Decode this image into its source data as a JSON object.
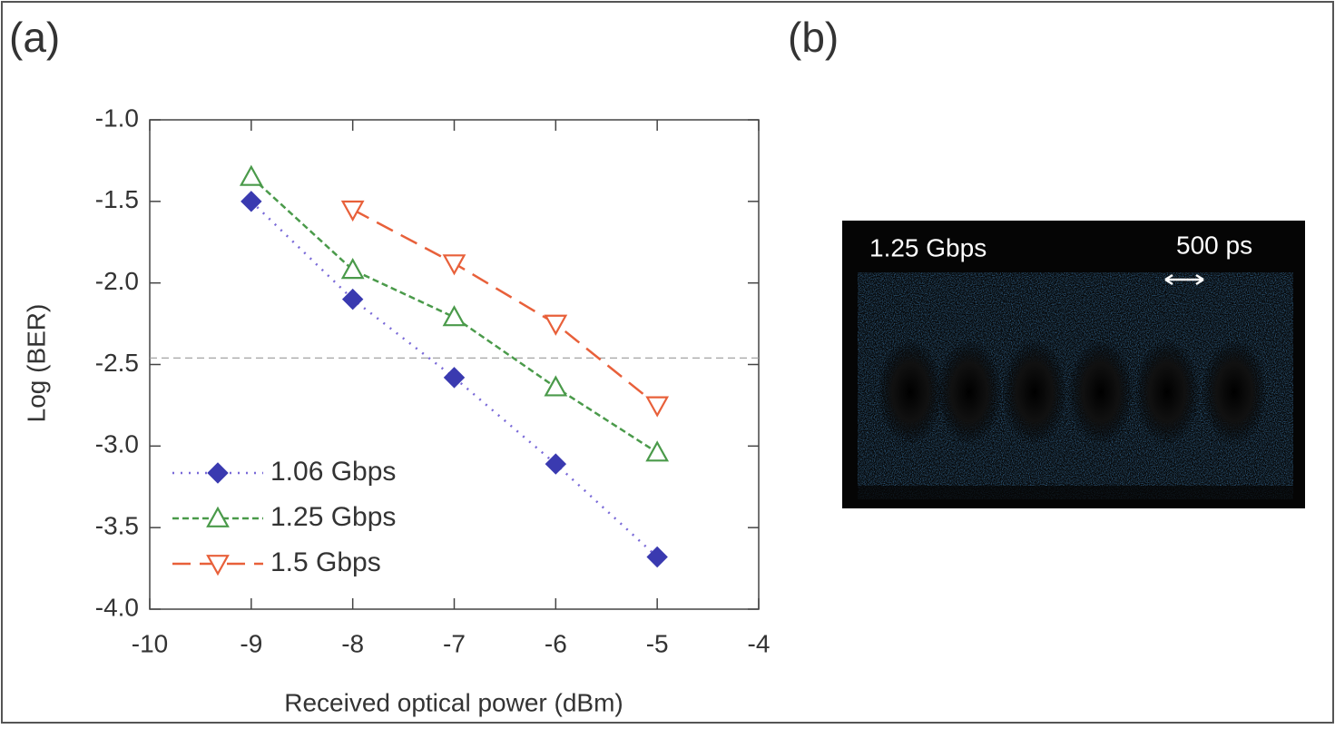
{
  "panels": {
    "a": "(a)",
    "b": "(b)"
  },
  "chart_data": {
    "type": "line",
    "x_label": "Received optical power (dBm)",
    "y_label": "Log (BER)",
    "x": [
      -9,
      -8,
      -7,
      -6,
      -5
    ],
    "series": [
      {
        "name": "1.06 Gbps",
        "color": "#3a3ab0",
        "line_color": "#7a6ad8",
        "marker": "diamond",
        "dash": "dotted",
        "values": [
          -1.5,
          -2.1,
          -2.58,
          -3.11,
          -3.68
        ]
      },
      {
        "name": "1.25 Gbps",
        "color": "#4a9a4a",
        "line_color": "#4a9a4a",
        "marker": "triangle-up",
        "dash": "dashed",
        "values": [
          -1.35,
          -1.92,
          -2.21,
          -2.64,
          -3.04
        ]
      },
      {
        "name": "1.5 Gbps",
        "color": "#e8603a",
        "line_color": "#e8603a",
        "marker": "triangle-down",
        "dash": "longdash",
        "values": [
          null,
          -1.55,
          -1.88,
          -2.25,
          -2.75
        ]
      }
    ],
    "reference_line": -2.46,
    "xlim": [
      -10,
      -4
    ],
    "xticks": [
      -10,
      -9,
      -8,
      -7,
      -6,
      -5,
      -4
    ],
    "ylim": [
      -4,
      -1
    ],
    "yticks": [
      {
        "value": -4,
        "label": "-4.0"
      },
      -3.5,
      {
        "value": -3,
        "label": "-3.0"
      },
      -2.5,
      {
        "value": -2,
        "label": "-2.0"
      },
      -1.5,
      {
        "value": -1,
        "label": "-1.0"
      }
    ],
    "legend": "lower left"
  },
  "eye_diagram": {
    "rate": "1.25 Gbps",
    "scale": "500 ps"
  }
}
